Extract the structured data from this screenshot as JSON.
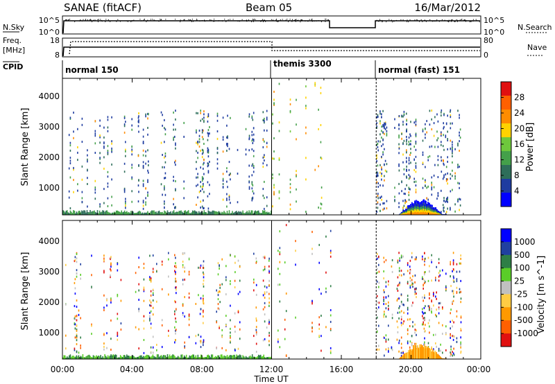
{
  "header": {
    "station": "SANAE (fitACF)",
    "beam": "Beam 05",
    "date": "16/Mar/2012"
  },
  "side_labels": {
    "nsky": "N.Sky",
    "freq": "Freq.",
    "freq_unit": "[MHz]",
    "cpid": "CPID",
    "nsearch": "N.Search",
    "nave": "Nave"
  },
  "top_axes": {
    "nsky_ticks": [
      "10^5",
      "10^0"
    ],
    "nsearch_ticks": [
      "10^5",
      "10^0"
    ],
    "freq_ticks": [
      "18",
      "8"
    ],
    "nave_ticks": [
      "80",
      "0"
    ]
  },
  "cpid": [
    {
      "label": "normal 150",
      "start": 0
    },
    {
      "label": "themis 3300",
      "start": 12
    },
    {
      "label": "normal (fast) 151",
      "start": 18
    }
  ],
  "colors": {
    "power": [
      "#0000ff",
      "#1e3ca0",
      "#2e6e5a",
      "#44a04a",
      "#6ec83c",
      "#ffd200",
      "#ff8c00",
      "#ff6000",
      "#e01010"
    ],
    "velocity": [
      "#e01010",
      "#ff6000",
      "#ff9900",
      "#ffcc44",
      "#c0c0c0",
      "#5acd28",
      "#2e7e46",
      "#2040a0",
      "#0000ff"
    ]
  },
  "chart_data": [
    {
      "type": "heatmap",
      "title": "Power",
      "xlabel": "Time UT",
      "ylabel": "Slant Range [km]",
      "colorbar_label": "Power [dB]",
      "colorbar_ticks": [
        "28",
        "24",
        "20",
        "16",
        "12",
        "8",
        "4"
      ],
      "x_ticks": [
        "00:00",
        "04:00",
        "08:00",
        "12:00",
        "16:00",
        "20:00",
        "00:00"
      ],
      "y_ticks": [
        "1000",
        "2000",
        "3000",
        "4000"
      ],
      "xlim_hours": [
        0,
        24
      ],
      "ylim_km": [
        180,
        4600
      ],
      "scatter_regions": [
        {
          "t0": 0.1,
          "t1": 11.9,
          "r0": 400,
          "r1": 3600,
          "density": "sparse"
        },
        {
          "t0": 12.0,
          "t1": 15.4,
          "r0": 300,
          "r1": 4500,
          "density": "very sparse"
        },
        {
          "t0": 18.0,
          "t1": 22.9,
          "r0": 300,
          "r1": 3600,
          "density": "sparse"
        }
      ],
      "near_range_band": {
        "t0": 0,
        "t1": 12,
        "r0": 180,
        "r1": 400
      },
      "enhanced_patch": {
        "t0": 19.3,
        "t1": 22.0,
        "r0": 200,
        "r1": 700
      }
    },
    {
      "type": "heatmap",
      "title": "Velocity",
      "xlabel": "Time UT",
      "ylabel": "Slant Range [km]",
      "colorbar_label": "Velocity [m s^-1]",
      "colorbar_ticks": [
        "1000",
        "500",
        "100",
        "25",
        "-25",
        "-100",
        "-500",
        "-1000"
      ],
      "x_ticks": [
        "00:00",
        "04:00",
        "08:00",
        "12:00",
        "16:00",
        "20:00",
        "00:00"
      ],
      "y_ticks": [
        "1000",
        "2000",
        "3000",
        "4000"
      ],
      "xlim_hours": [
        0,
        24
      ],
      "ylim_km": [
        180,
        4600
      ],
      "scatter_regions": [
        {
          "t0": 0.1,
          "t1": 11.9,
          "r0": 400,
          "r1": 3600,
          "density": "sparse"
        },
        {
          "t0": 12.0,
          "t1": 15.4,
          "r0": 300,
          "r1": 4500,
          "density": "very sparse"
        },
        {
          "t0": 18.0,
          "t1": 22.9,
          "r0": 300,
          "r1": 3600,
          "density": "sparse"
        }
      ],
      "near_range_band": {
        "t0": 0,
        "t1": 12,
        "r0": 180,
        "r1": 400
      },
      "enhanced_patch": {
        "t0": 19.3,
        "t1": 22.0,
        "r0": 200,
        "r1": 700
      }
    }
  ]
}
